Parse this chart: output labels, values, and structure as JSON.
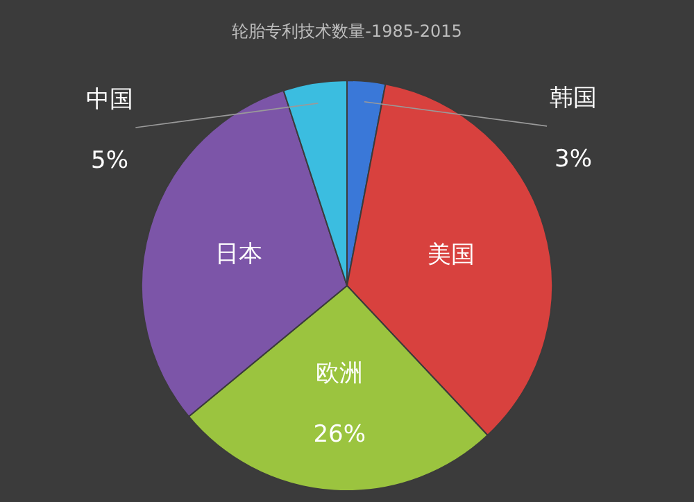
{
  "chart_data": {
    "type": "pie",
    "title": "轮胎专利技术数量-1985-2015",
    "categories": [
      "韩国",
      "美国",
      "欧洲",
      "日本",
      "中国"
    ],
    "values": [
      3,
      35,
      26,
      31,
      5
    ],
    "value_labels": [
      "3%",
      null,
      "26%",
      null,
      "5%"
    ],
    "colors": [
      "#3a78d8",
      "#d8413e",
      "#9bc43f",
      "#7c55a8",
      "#3bbde0"
    ],
    "legend": false
  }
}
